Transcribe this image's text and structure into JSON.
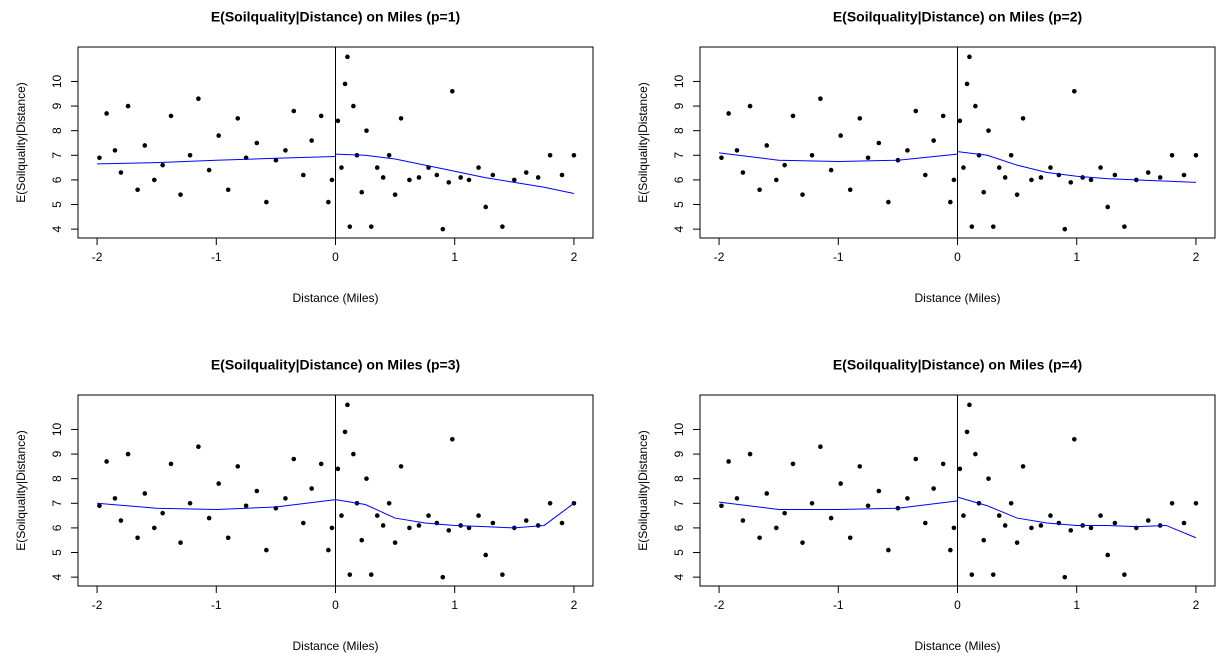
{
  "chart_data": [
    {
      "type": "scatter",
      "title": "E(Soilquality|Distance) on Miles (p=1)",
      "x_label": "Distance (Miles)",
      "y_label": "E(Soilquality|Distance)",
      "xlim": [
        -2.16,
        2.16
      ],
      "ylim": [
        3.64,
        11.4
      ],
      "xticks": [
        -2,
        -1,
        0,
        1,
        2
      ],
      "yticks": [
        4,
        5,
        6,
        7,
        8,
        9,
        10
      ],
      "vline": 0,
      "points": {
        "color": "#000000",
        "x": [
          -1.98,
          -1.92,
          -1.85,
          -1.8,
          -1.74,
          -1.66,
          -1.6,
          -1.52,
          -1.45,
          -1.38,
          -1.3,
          -1.22,
          -1.15,
          -1.06,
          -0.98,
          -0.9,
          -0.82,
          -0.75,
          -0.66,
          -0.58,
          -0.5,
          -0.42,
          -0.35,
          -0.27,
          -0.2,
          -0.12,
          -0.06,
          -0.03,
          0.02,
          0.05,
          0.08,
          0.1,
          0.12,
          0.15,
          0.18,
          0.22,
          0.26,
          0.3,
          0.35,
          0.4,
          0.45,
          0.5,
          0.55,
          0.62,
          0.7,
          0.78,
          0.85,
          0.9,
          0.95,
          0.98,
          1.05,
          1.12,
          1.2,
          1.26,
          1.32,
          1.4,
          1.5,
          1.6,
          1.7,
          1.8,
          1.9,
          2.0
        ],
        "y": [
          6.9,
          8.7,
          7.2,
          6.3,
          9.0,
          5.6,
          7.4,
          6.0,
          6.6,
          8.6,
          5.4,
          7.0,
          9.3,
          6.4,
          7.8,
          5.6,
          8.5,
          6.9,
          7.5,
          5.1,
          6.8,
          7.2,
          8.8,
          6.2,
          7.6,
          8.6,
          5.1,
          6.0,
          8.4,
          6.5,
          9.9,
          11.0,
          4.1,
          9.0,
          7.0,
          5.5,
          8.0,
          4.1,
          6.5,
          6.1,
          7.0,
          5.4,
          8.5,
          6.0,
          6.1,
          6.5,
          6.2,
          4.0,
          5.9,
          9.6,
          6.1,
          6.0,
          6.5,
          4.9,
          6.2,
          4.1,
          6.0,
          6.3,
          6.1,
          7.0,
          6.2,
          7.0
        ]
      },
      "fit": {
        "color": "#0000ff",
        "x": [
          -2,
          -1.5,
          -1,
          -0.5,
          0,
          0,
          0,
          0.25,
          0.5,
          0.75,
          1,
          1.25,
          1.5,
          1.75,
          2
        ],
        "values": [
          6.65,
          6.7,
          6.8,
          6.88,
          6.95,
          null,
          7.05,
          7.0,
          6.85,
          6.6,
          6.35,
          6.1,
          5.9,
          5.7,
          5.45
        ]
      }
    },
    {
      "type": "scatter",
      "title": "E(Soilquality|Distance) on Miles (p=2)",
      "x_label": "Distance (Miles)",
      "y_label": "E(Soilquality|Distance)",
      "xlim": [
        -2.16,
        2.16
      ],
      "ylim": [
        3.64,
        11.4
      ],
      "xticks": [
        -2,
        -1,
        0,
        1,
        2
      ],
      "yticks": [
        4,
        5,
        6,
        7,
        8,
        9,
        10
      ],
      "vline": 0,
      "points": {
        "color": "#000000",
        "x": [
          -1.98,
          -1.92,
          -1.85,
          -1.8,
          -1.74,
          -1.66,
          -1.6,
          -1.52,
          -1.45,
          -1.38,
          -1.3,
          -1.22,
          -1.15,
          -1.06,
          -0.98,
          -0.9,
          -0.82,
          -0.75,
          -0.66,
          -0.58,
          -0.5,
          -0.42,
          -0.35,
          -0.27,
          -0.2,
          -0.12,
          -0.06,
          -0.03,
          0.02,
          0.05,
          0.08,
          0.1,
          0.12,
          0.15,
          0.18,
          0.22,
          0.26,
          0.3,
          0.35,
          0.4,
          0.45,
          0.5,
          0.55,
          0.62,
          0.7,
          0.78,
          0.85,
          0.9,
          0.95,
          0.98,
          1.05,
          1.12,
          1.2,
          1.26,
          1.32,
          1.4,
          1.5,
          1.6,
          1.7,
          1.8,
          1.9,
          2.0
        ],
        "y": [
          6.9,
          8.7,
          7.2,
          6.3,
          9.0,
          5.6,
          7.4,
          6.0,
          6.6,
          8.6,
          5.4,
          7.0,
          9.3,
          6.4,
          7.8,
          5.6,
          8.5,
          6.9,
          7.5,
          5.1,
          6.8,
          7.2,
          8.8,
          6.2,
          7.6,
          8.6,
          5.1,
          6.0,
          8.4,
          6.5,
          9.9,
          11.0,
          4.1,
          9.0,
          7.0,
          5.5,
          8.0,
          4.1,
          6.5,
          6.1,
          7.0,
          5.4,
          8.5,
          6.0,
          6.1,
          6.5,
          6.2,
          4.0,
          5.9,
          9.6,
          6.1,
          6.0,
          6.5,
          4.9,
          6.2,
          4.1,
          6.0,
          6.3,
          6.1,
          7.0,
          6.2,
          7.0
        ]
      },
      "fit": {
        "color": "#0000ff",
        "x": [
          -2,
          -1.5,
          -1,
          -0.5,
          0,
          0,
          0,
          0.25,
          0.5,
          0.75,
          1,
          1.25,
          1.5,
          1.75,
          2
        ],
        "values": [
          7.1,
          6.8,
          6.75,
          6.8,
          7.05,
          null,
          7.15,
          7.0,
          6.6,
          6.3,
          6.15,
          6.05,
          6.0,
          5.95,
          5.9
        ]
      }
    },
    {
      "type": "scatter",
      "title": "E(Soilquality|Distance) on Miles (p=3)",
      "x_label": "Distance (Miles)",
      "y_label": "E(Soilquality|Distance)",
      "xlim": [
        -2.16,
        2.16
      ],
      "ylim": [
        3.64,
        11.4
      ],
      "xticks": [
        -2,
        -1,
        0,
        1,
        2
      ],
      "yticks": [
        4,
        5,
        6,
        7,
        8,
        9,
        10
      ],
      "vline": 0,
      "points": {
        "color": "#000000",
        "x": [
          -1.98,
          -1.92,
          -1.85,
          -1.8,
          -1.74,
          -1.66,
          -1.6,
          -1.52,
          -1.45,
          -1.38,
          -1.3,
          -1.22,
          -1.15,
          -1.06,
          -0.98,
          -0.9,
          -0.82,
          -0.75,
          -0.66,
          -0.58,
          -0.5,
          -0.42,
          -0.35,
          -0.27,
          -0.2,
          -0.12,
          -0.06,
          -0.03,
          0.02,
          0.05,
          0.08,
          0.1,
          0.12,
          0.15,
          0.18,
          0.22,
          0.26,
          0.3,
          0.35,
          0.4,
          0.45,
          0.5,
          0.55,
          0.62,
          0.7,
          0.78,
          0.85,
          0.9,
          0.95,
          0.98,
          1.05,
          1.12,
          1.2,
          1.26,
          1.32,
          1.4,
          1.5,
          1.6,
          1.7,
          1.8,
          1.9,
          2.0
        ],
        "y": [
          6.9,
          8.7,
          7.2,
          6.3,
          9.0,
          5.6,
          7.4,
          6.0,
          6.6,
          8.6,
          5.4,
          7.0,
          9.3,
          6.4,
          7.8,
          5.6,
          8.5,
          6.9,
          7.5,
          5.1,
          6.8,
          7.2,
          8.8,
          6.2,
          7.6,
          8.6,
          5.1,
          6.0,
          8.4,
          6.5,
          9.9,
          11.0,
          4.1,
          9.0,
          7.0,
          5.5,
          8.0,
          4.1,
          6.5,
          6.1,
          7.0,
          5.4,
          8.5,
          6.0,
          6.1,
          6.5,
          6.2,
          4.0,
          5.9,
          9.6,
          6.1,
          6.0,
          6.5,
          4.9,
          6.2,
          4.1,
          6.0,
          6.3,
          6.1,
          7.0,
          6.2,
          7.0
        ]
      },
      "fit": {
        "color": "#0000ff",
        "x": [
          -2,
          -1.5,
          -1,
          -0.5,
          0,
          0,
          0,
          0.25,
          0.5,
          0.75,
          1,
          1.25,
          1.5,
          1.75,
          2
        ],
        "values": [
          7.0,
          6.8,
          6.75,
          6.85,
          7.15,
          null,
          7.15,
          6.95,
          6.4,
          6.2,
          6.1,
          6.05,
          6.0,
          6.1,
          7.0
        ]
      }
    },
    {
      "type": "scatter",
      "title": "E(Soilquality|Distance) on Miles (p=4)",
      "x_label": "Distance (Miles)",
      "y_label": "E(Soilquality|Distance)",
      "xlim": [
        -2.16,
        2.16
      ],
      "ylim": [
        3.64,
        11.4
      ],
      "xticks": [
        -2,
        -1,
        0,
        1,
        2
      ],
      "yticks": [
        4,
        5,
        6,
        7,
        8,
        9,
        10
      ],
      "vline": 0,
      "points": {
        "color": "#000000",
        "x": [
          -1.98,
          -1.92,
          -1.85,
          -1.8,
          -1.74,
          -1.66,
          -1.6,
          -1.52,
          -1.45,
          -1.38,
          -1.3,
          -1.22,
          -1.15,
          -1.06,
          -0.98,
          -0.9,
          -0.82,
          -0.75,
          -0.66,
          -0.58,
          -0.5,
          -0.42,
          -0.35,
          -0.27,
          -0.2,
          -0.12,
          -0.06,
          -0.03,
          0.02,
          0.05,
          0.08,
          0.1,
          0.12,
          0.15,
          0.18,
          0.22,
          0.26,
          0.3,
          0.35,
          0.4,
          0.45,
          0.5,
          0.55,
          0.62,
          0.7,
          0.78,
          0.85,
          0.9,
          0.95,
          0.98,
          1.05,
          1.12,
          1.2,
          1.26,
          1.32,
          1.4,
          1.5,
          1.6,
          1.7,
          1.8,
          1.9,
          2.0
        ],
        "y": [
          6.9,
          8.7,
          7.2,
          6.3,
          9.0,
          5.6,
          7.4,
          6.0,
          6.6,
          8.6,
          5.4,
          7.0,
          9.3,
          6.4,
          7.8,
          5.6,
          8.5,
          6.9,
          7.5,
          5.1,
          6.8,
          7.2,
          8.8,
          6.2,
          7.6,
          8.6,
          5.1,
          6.0,
          8.4,
          6.5,
          9.9,
          11.0,
          4.1,
          9.0,
          7.0,
          5.5,
          8.0,
          4.1,
          6.5,
          6.1,
          7.0,
          5.4,
          8.5,
          6.0,
          6.1,
          6.5,
          6.2,
          4.0,
          5.9,
          9.6,
          6.1,
          6.0,
          6.5,
          4.9,
          6.2,
          4.1,
          6.0,
          6.3,
          6.1,
          7.0,
          6.2,
          7.0
        ]
      },
      "fit": {
        "color": "#0000ff",
        "x": [
          -2,
          -1.5,
          -1,
          -0.5,
          0,
          0,
          0,
          0.25,
          0.5,
          0.75,
          1,
          1.25,
          1.5,
          1.75,
          2
        ],
        "values": [
          7.05,
          6.75,
          6.75,
          6.8,
          7.1,
          null,
          7.25,
          6.9,
          6.4,
          6.2,
          6.1,
          6.1,
          6.05,
          6.1,
          5.6
        ]
      }
    }
  ]
}
